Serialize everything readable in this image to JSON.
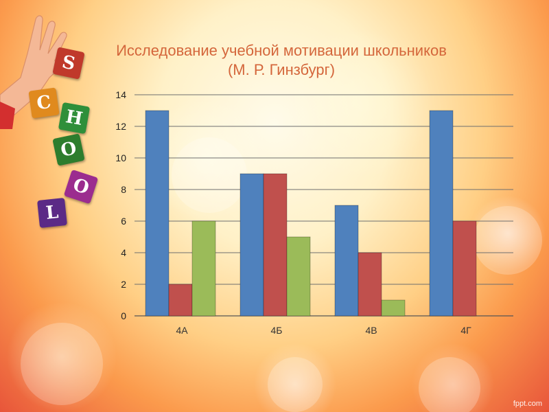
{
  "slide": {
    "title_line1": "Исследование учебной мотивации школьников",
    "title_line2": "(М. Р. Гинзбург)",
    "footer": "fppt.com"
  },
  "decoration": {
    "blocks": [
      {
        "letter": "S",
        "color": "#c0392b",
        "rotate": 12
      },
      {
        "letter": "C",
        "color": "#e08a1e",
        "rotate": -8
      },
      {
        "letter": "H",
        "color": "#2f8f3a",
        "rotate": 10
      },
      {
        "letter": "O",
        "color": "#2d7d2d",
        "rotate": -12
      },
      {
        "letter": "O",
        "color": "#9b2c8f",
        "rotate": 18
      },
      {
        "letter": "L",
        "color": "#5b2a86",
        "rotate": -6
      }
    ],
    "hand_icon": "hand-icon"
  },
  "chart_data": {
    "type": "bar",
    "categories": [
      "4А",
      "4Б",
      "4В",
      "4Г"
    ],
    "series": [
      {
        "values": [
          13,
          9,
          7,
          13
        ],
        "color": "#4f81bd"
      },
      {
        "values": [
          2,
          9,
          4,
          6
        ],
        "color": "#c0504d"
      },
      {
        "values": [
          6,
          5,
          1,
          0
        ],
        "color": "#9bbb59"
      }
    ],
    "ylim": [
      0,
      14
    ],
    "yticks": [
      0,
      2,
      4,
      6,
      8,
      10,
      12,
      14
    ],
    "grid": true,
    "legend": "none",
    "title": "Исследование учебной мотивации школьников (М. Р. Гинзбург)",
    "xlabel": "",
    "ylabel": ""
  }
}
